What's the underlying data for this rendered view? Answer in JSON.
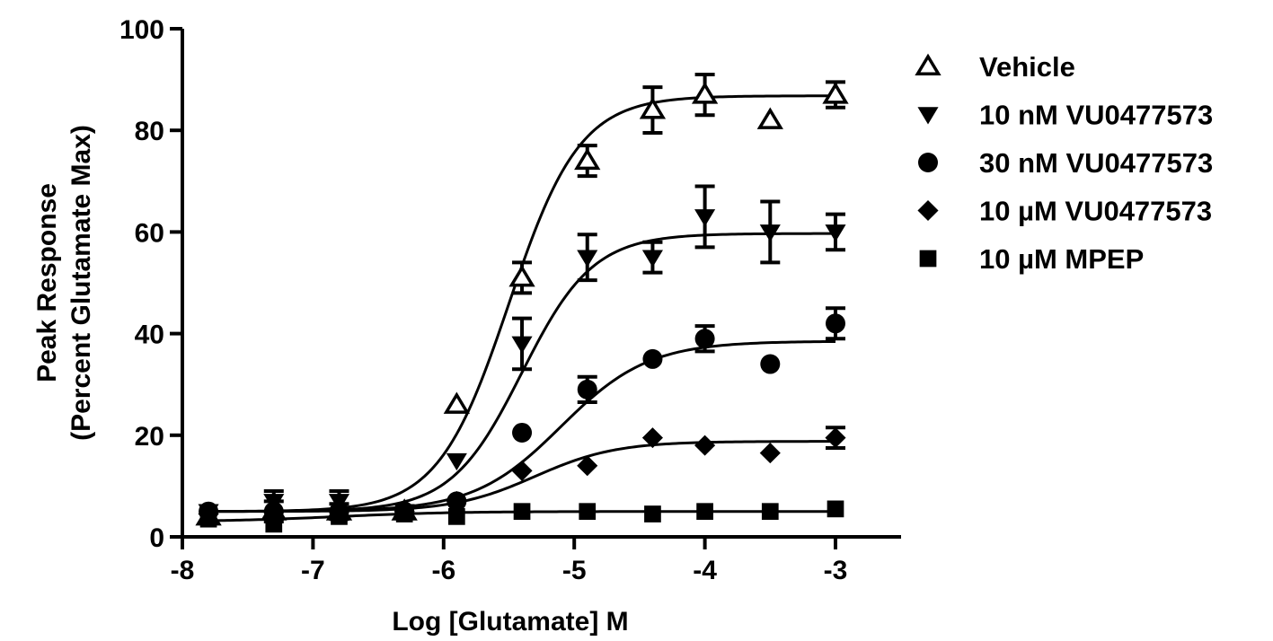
{
  "chart_data": {
    "type": "scatter",
    "title": "",
    "xlabel": "Log [Glutamate] M",
    "ylabel_line1": "Peak Response",
    "ylabel_line2": "(Percent Glutamate Max)",
    "xlim": [
      -8,
      -3
    ],
    "ylim": [
      0,
      100
    ],
    "xticks": [
      -8,
      -7,
      -6,
      -5,
      -4,
      -3
    ],
    "xtick_labels": [
      "-8",
      "-7",
      "-6",
      "-5",
      "-4",
      "-3"
    ],
    "yticks": [
      0,
      20,
      40,
      60,
      80,
      100
    ],
    "ytick_labels": [
      "0",
      "20",
      "40",
      "60",
      "80",
      "100"
    ],
    "grid": false,
    "legend_position": "right",
    "series": [
      {
        "name": "Vehicle",
        "marker": "triangle-up-open",
        "points": [
          {
            "x": -7.8,
            "y": 4,
            "err": 0
          },
          {
            "x": -7.3,
            "y": 5,
            "err": 2
          },
          {
            "x": -6.8,
            "y": 5,
            "err": 1.5
          },
          {
            "x": -6.3,
            "y": 5,
            "err": 0
          },
          {
            "x": -5.9,
            "y": 26,
            "err": 0
          },
          {
            "x": -5.4,
            "y": 51,
            "err": 3
          },
          {
            "x": -4.9,
            "y": 74,
            "err": 3
          },
          {
            "x": -4.4,
            "y": 84,
            "err": 4.5
          },
          {
            "x": -4.0,
            "y": 87,
            "err": 4
          },
          {
            "x": -3.5,
            "y": 82,
            "err": 0
          },
          {
            "x": -3.0,
            "y": 87,
            "err": 2.5
          }
        ],
        "fit": {
          "bottom": 5,
          "top": 86.8,
          "logec50": -5.5,
          "hill": 1.6
        }
      },
      {
        "name": "10 nM VU0477573",
        "marker": "triangle-down-filled",
        "points": [
          {
            "x": -7.8,
            "y": 5,
            "err": 0
          },
          {
            "x": -7.3,
            "y": 7,
            "err": 2
          },
          {
            "x": -6.8,
            "y": 7,
            "err": 2
          },
          {
            "x": -6.3,
            "y": 5,
            "err": 0
          },
          {
            "x": -5.9,
            "y": 15,
            "err": 0
          },
          {
            "x": -5.4,
            "y": 38,
            "err": 5
          },
          {
            "x": -4.9,
            "y": 55,
            "err": 4.5
          },
          {
            "x": -4.4,
            "y": 55,
            "err": 3
          },
          {
            "x": -4.0,
            "y": 63,
            "err": 6
          },
          {
            "x": -3.5,
            "y": 60,
            "err": 6
          },
          {
            "x": -3.0,
            "y": 60,
            "err": 3.5
          }
        ],
        "fit": {
          "bottom": 5,
          "top": 59.7,
          "logec50": -5.4,
          "hill": 1.6
        }
      },
      {
        "name": "30 nM VU0477573",
        "marker": "circle-filled",
        "points": [
          {
            "x": -7.8,
            "y": 5,
            "err": 0
          },
          {
            "x": -7.3,
            "y": 5,
            "err": 0
          },
          {
            "x": -6.8,
            "y": 5,
            "err": 0
          },
          {
            "x": -6.3,
            "y": 5,
            "err": 0
          },
          {
            "x": -5.9,
            "y": 7,
            "err": 0
          },
          {
            "x": -5.4,
            "y": 20.5,
            "err": 0
          },
          {
            "x": -4.9,
            "y": 29,
            "err": 2.5
          },
          {
            "x": -4.4,
            "y": 35,
            "err": 0
          },
          {
            "x": -4.0,
            "y": 39,
            "err": 2.5
          },
          {
            "x": -3.5,
            "y": 34,
            "err": 0
          },
          {
            "x": -3.0,
            "y": 42,
            "err": 3
          }
        ],
        "fit": {
          "bottom": 5,
          "top": 38.5,
          "logec50": -5.1,
          "hill": 1.3
        }
      },
      {
        "name": "10 µM VU0477573",
        "marker": "diamond-filled",
        "points": [
          {
            "x": -7.8,
            "y": 4.5,
            "err": 0
          },
          {
            "x": -7.3,
            "y": 5,
            "err": 0
          },
          {
            "x": -6.8,
            "y": 5,
            "err": 0
          },
          {
            "x": -6.3,
            "y": 5,
            "err": 0
          },
          {
            "x": -5.9,
            "y": 7,
            "err": 0
          },
          {
            "x": -5.4,
            "y": 13,
            "err": 0
          },
          {
            "x": -4.9,
            "y": 14,
            "err": 0
          },
          {
            "x": -4.4,
            "y": 19.5,
            "err": 0
          },
          {
            "x": -4.0,
            "y": 18,
            "err": 0
          },
          {
            "x": -3.5,
            "y": 16.5,
            "err": 0
          },
          {
            "x": -3.0,
            "y": 19.5,
            "err": 2
          }
        ],
        "fit": {
          "bottom": 5,
          "top": 18.8,
          "logec50": -5.3,
          "hill": 1.4
        }
      },
      {
        "name": "10 µM MPEP",
        "marker": "square-filled",
        "points": [
          {
            "x": -7.8,
            "y": 3.5,
            "err": 0
          },
          {
            "x": -7.3,
            "y": 2.5,
            "err": 0
          },
          {
            "x": -6.8,
            "y": 4,
            "err": 0
          },
          {
            "x": -6.3,
            "y": 4.5,
            "err": 0
          },
          {
            "x": -5.9,
            "y": 4,
            "err": 0
          },
          {
            "x": -5.4,
            "y": 5,
            "err": 0
          },
          {
            "x": -4.9,
            "y": 5,
            "err": 0
          },
          {
            "x": -4.4,
            "y": 4.5,
            "err": 0
          },
          {
            "x": -4.0,
            "y": 5,
            "err": 0
          },
          {
            "x": -3.5,
            "y": 5,
            "err": 0
          },
          {
            "x": -3.0,
            "y": 5.5,
            "err": 0
          }
        ],
        "fit": {
          "bottom": 3,
          "top": 5,
          "logec50": -6.8,
          "hill": 1.0
        }
      }
    ]
  }
}
